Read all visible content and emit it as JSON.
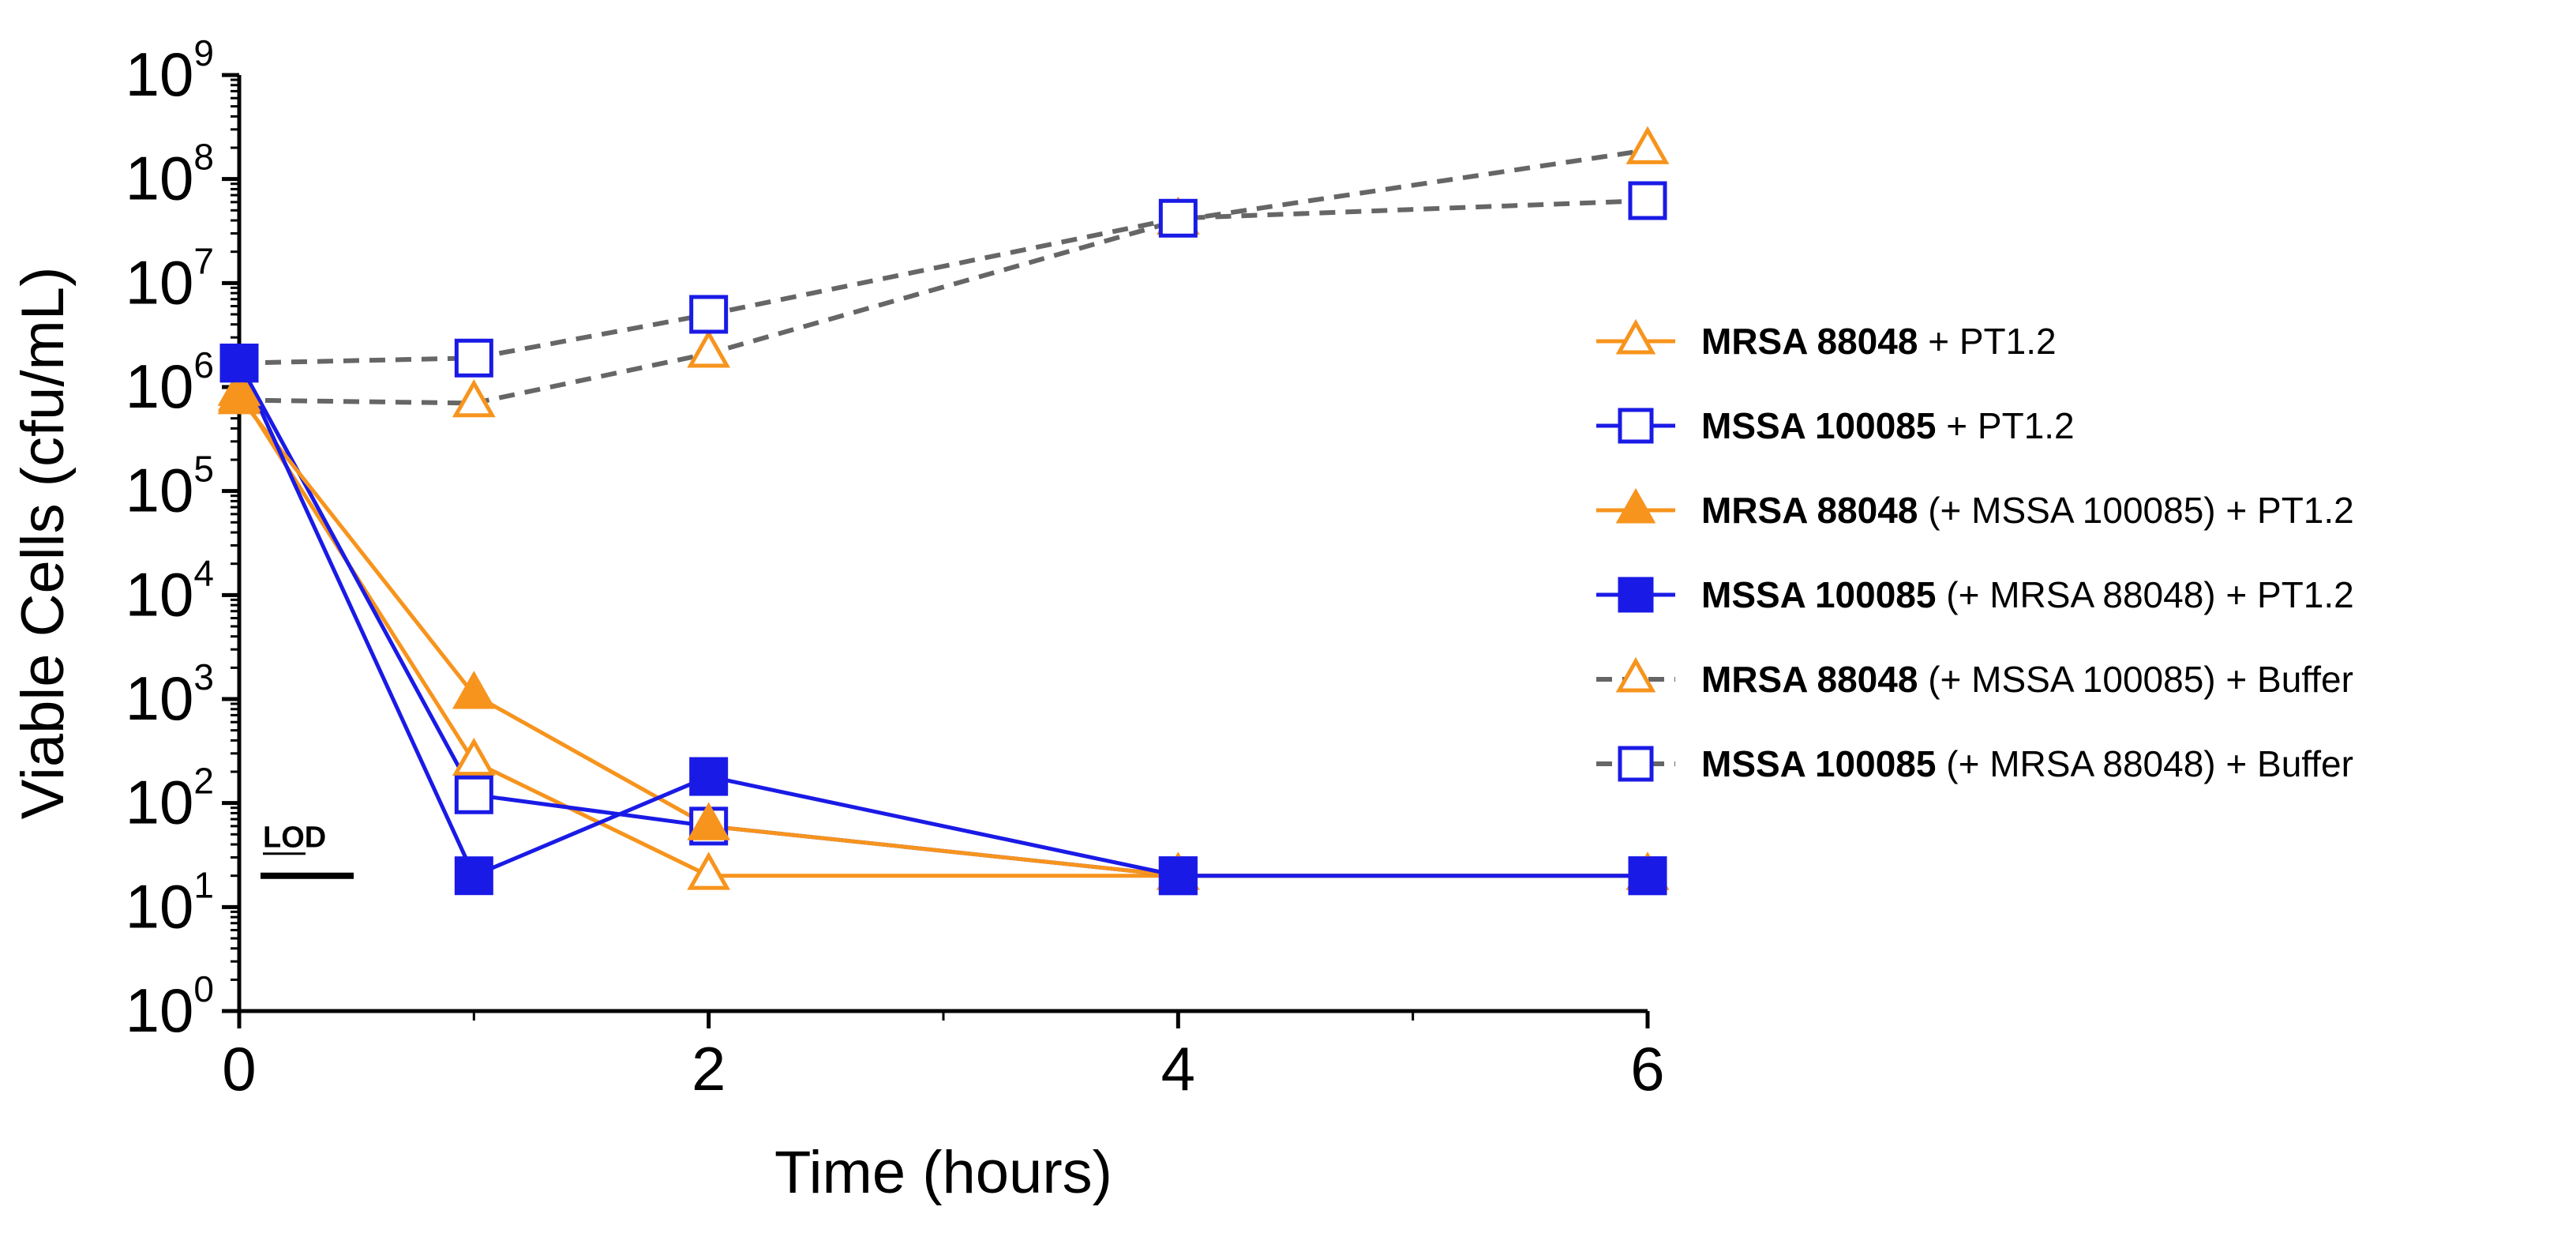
{
  "chart_data": {
    "type": "line",
    "title": "",
    "xlabel": "Time (hours)",
    "ylabel": "Viable Cells (cfu/mL)",
    "yscale": "log10",
    "xlim": [
      0,
      6
    ],
    "ylim_exponent": [
      0,
      9
    ],
    "x_ticks": [
      0,
      2,
      4,
      6
    ],
    "y_tick_base": "10",
    "y_tick_exponents": [
      0,
      1,
      2,
      3,
      4,
      5,
      6,
      7,
      8,
      9
    ],
    "grid": false,
    "legend_position": "right",
    "lod": {
      "label": "LOD",
      "value": 20
    },
    "colors": {
      "orange": "#F7941D",
      "blue": "#1A1AE6",
      "gray": "#666666"
    },
    "series": [
      {
        "name_bold": "MRSA 88048",
        "name_rest": " + PT1.2",
        "color": "#F7941D",
        "marker": "triangle-open",
        "line": "solid",
        "x": [
          0,
          1,
          2,
          4,
          6
        ],
        "values": [
          900000,
          250,
          20,
          20,
          20
        ]
      },
      {
        "name_bold": "MSSA 100085",
        "name_rest": " + PT1.2",
        "color": "#1A1AE6",
        "marker": "square-open",
        "line": "solid",
        "x": [
          0,
          1,
          2,
          4,
          6
        ],
        "values": [
          1700000,
          120,
          60,
          20,
          20
        ]
      },
      {
        "name_bold": "MRSA 88048",
        "name_rest": " (+ MSSA 100085) + PT1.2",
        "color": "#F7941D",
        "marker": "triangle-filled",
        "line": "solid",
        "x": [
          0,
          1,
          2,
          4,
          6
        ],
        "values": [
          800000,
          1100,
          60,
          20,
          20
        ]
      },
      {
        "name_bold": "MSSA 100085",
        "name_rest": " (+ MRSA 88048) + PT1.2",
        "color": "#1A1AE6",
        "marker": "square-filled",
        "line": "solid",
        "x": [
          0,
          1,
          2,
          4,
          6
        ],
        "values": [
          1700000,
          20,
          180,
          20,
          20
        ]
      },
      {
        "name_bold": "MRSA 88048",
        "name_rest": " (+ MSSA 100085) + Buffer",
        "color": "#F7941D",
        "line_color": "#666666",
        "marker": "triangle-open",
        "line": "dashed",
        "x": [
          0,
          1,
          2,
          4,
          6
        ],
        "values": [
          750000,
          700000,
          2100000,
          40000000,
          190000000
        ]
      },
      {
        "name_bold": "MSSA 100085",
        "name_rest": " (+ MRSA 88048) + Buffer",
        "color": "#1A1AE6",
        "line_color": "#666666",
        "marker": "square-open",
        "line": "dashed",
        "x": [
          0,
          1,
          2,
          4,
          6
        ],
        "values": [
          1700000,
          1900000,
          5000000,
          42000000,
          62000000
        ]
      }
    ]
  }
}
